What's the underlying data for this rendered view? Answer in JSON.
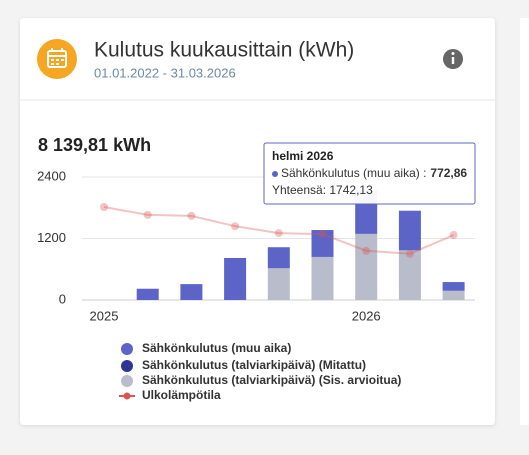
{
  "header": {
    "title": "Kulutus kuukausittain (kWh)",
    "subtitle": "01.01.2022 - 31.03.2026"
  },
  "chart_data": {
    "type": "bar",
    "stacked": true,
    "total": "8 139,81 kWh",
    "categories": [
      "2025",
      null,
      null,
      null,
      null,
      null,
      "2026",
      null,
      null
    ],
    "ylim": [
      0,
      2400
    ],
    "yticks": [
      0,
      1200,
      2400
    ],
    "y2lim": [
      -10,
      15
    ],
    "grid": true,
    "series": [
      {
        "name": "Sähkönkulutus (muu aika)",
        "color": "#5c64c8",
        "values": [
          null,
          220,
          310,
          820,
          410,
          525,
          860,
          772.86,
          170
        ]
      },
      {
        "name": "Sähkönkulutus (talviarkipäivä) (Mitattu)",
        "color": "#2e3592",
        "values": [
          null,
          null,
          null,
          null,
          null,
          null,
          null,
          null,
          null
        ]
      },
      {
        "name": "Sähkönkulutus (talviarkipäivä) (Sis. arvioitua)",
        "color": "#b9bccb",
        "values": [
          null,
          null,
          null,
          null,
          620,
          840,
          1290,
          969.27,
          180
        ]
      },
      {
        "name": "Ulkolämpötila",
        "type": "line",
        "axis": "y2",
        "color": "#d9534f",
        "values": [
          8.9,
          7.3,
          7.1,
          5.0,
          3.6,
          3.4,
          0.0,
          -0.6,
          3.2
        ]
      }
    ],
    "tooltip": {
      "title": "helmi 2026",
      "text": "Sähkönkulutus (muu aika) :",
      "value": "772,86",
      "total": "Yhteensä: 1742,13"
    }
  }
}
